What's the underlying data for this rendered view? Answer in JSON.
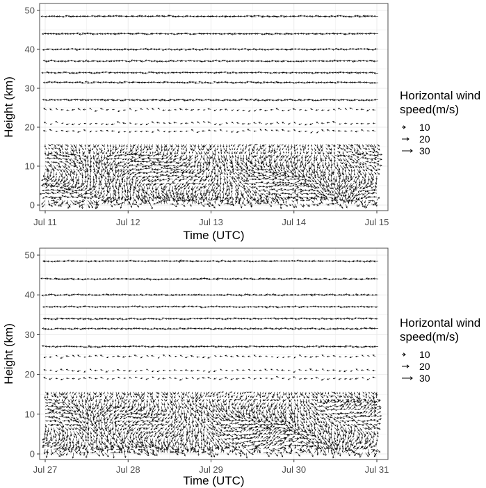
{
  "chart_data": [
    {
      "type": "quiver",
      "panel": "top",
      "xlabel": "Time (UTC)",
      "ylabel": "Height (km)",
      "x_ticks": [
        "Jul 11",
        "Jul 12",
        "Jul 13",
        "Jul 14",
        "Jul 15"
      ],
      "y_ticks": [
        0,
        10,
        20,
        30,
        40,
        50
      ],
      "xlim": [
        "Jul 11",
        "Jul 15"
      ],
      "ylim": [
        0,
        50
      ],
      "grid": true,
      "legend": {
        "title_line1": "Horizontal wind",
        "title_line2": "speed(m/s)",
        "entries": [
          "10",
          "20",
          "30"
        ],
        "placement": "right"
      },
      "upper_levels_km": [
        48.5,
        44,
        40,
        37,
        34,
        31.5,
        27,
        24.5,
        21,
        19
      ]
    },
    {
      "type": "quiver",
      "panel": "bottom",
      "xlabel": "Time (UTC)",
      "ylabel": "Height (km)",
      "x_ticks": [
        "Jul 27",
        "Jul 28",
        "Jul 29",
        "Jul 30",
        "Jul 31"
      ],
      "y_ticks": [
        0,
        10,
        20,
        30,
        40,
        50
      ],
      "xlim": [
        "Jul 27",
        "Jul 31"
      ],
      "ylim": [
        0,
        50
      ],
      "grid": true,
      "legend": {
        "title_line1": "Horizontal wind",
        "title_line2": "speed(m/s)",
        "entries": [
          "10",
          "20",
          "30"
        ],
        "placement": "right"
      },
      "upper_levels_km": [
        48.5,
        44,
        40,
        37,
        34,
        31.5,
        27,
        24.5,
        21,
        19
      ]
    }
  ],
  "colors": {
    "arrow": "#000000",
    "panel_border": "#4d4d4d",
    "grid": "#ebebeb",
    "tick_text": "#4d4d4d"
  }
}
